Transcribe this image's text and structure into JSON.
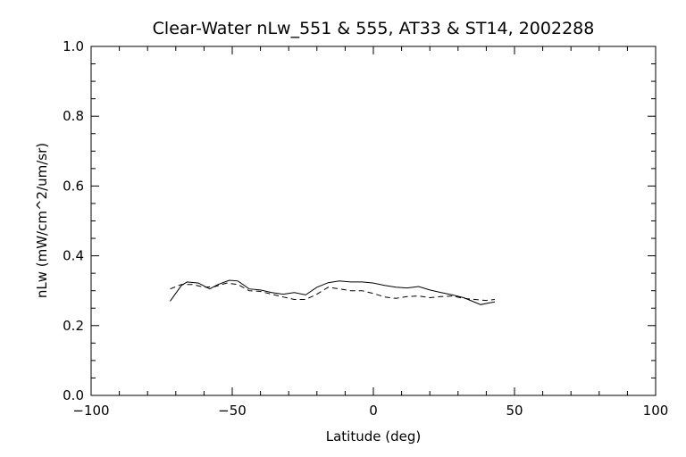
{
  "chart_data": {
    "type": "line",
    "title": "Clear-Water nLw_551 & 555, AT33 & ST14, 2002288",
    "xlabel": "Latitude (deg)",
    "ylabel": "nLw (mW/cm^2/um/sr)",
    "xlim": [
      -100,
      100
    ],
    "ylim": [
      0.0,
      1.0
    ],
    "xticks": [
      -100,
      -50,
      0,
      50,
      100
    ],
    "xtick_labels": [
      "−100",
      "−50",
      "0",
      "50",
      "100"
    ],
    "yticks": [
      0.0,
      0.2,
      0.4,
      0.6,
      0.8,
      1.0
    ],
    "ytick_labels": [
      "0.0",
      "0.2",
      "0.4",
      "0.6",
      "0.8",
      "1.0"
    ],
    "grid": false,
    "series": [
      {
        "style": "solid",
        "x": [
          -72,
          -68,
          -66,
          -62,
          -58,
          -55,
          -51,
          -48,
          -44,
          -40,
          -36,
          -32,
          -28,
          -24,
          -20,
          -16,
          -12,
          -8,
          -4,
          0,
          4,
          8,
          12,
          16,
          20,
          24,
          28,
          32,
          35,
          38,
          41,
          43
        ],
        "y": [
          0.27,
          0.315,
          0.325,
          0.322,
          0.305,
          0.318,
          0.33,
          0.328,
          0.305,
          0.302,
          0.295,
          0.29,
          0.295,
          0.288,
          0.31,
          0.323,
          0.328,
          0.325,
          0.325,
          0.322,
          0.315,
          0.31,
          0.308,
          0.312,
          0.302,
          0.295,
          0.288,
          0.28,
          0.27,
          0.26,
          0.265,
          0.268
        ]
      },
      {
        "style": "dashed",
        "x": [
          -72,
          -68,
          -64,
          -60,
          -56,
          -52,
          -48,
          -44,
          -40,
          -36,
          -32,
          -28,
          -24,
          -20,
          -16,
          -12,
          -8,
          -4,
          0,
          4,
          8,
          12,
          16,
          20,
          24,
          28,
          32,
          36,
          40,
          43
        ],
        "y": [
          0.305,
          0.318,
          0.318,
          0.31,
          0.312,
          0.322,
          0.318,
          0.3,
          0.298,
          0.29,
          0.282,
          0.275,
          0.275,
          0.29,
          0.31,
          0.305,
          0.3,
          0.3,
          0.292,
          0.282,
          0.278,
          0.283,
          0.285,
          0.28,
          0.283,
          0.285,
          0.278,
          0.275,
          0.272,
          0.275
        ]
      }
    ]
  }
}
